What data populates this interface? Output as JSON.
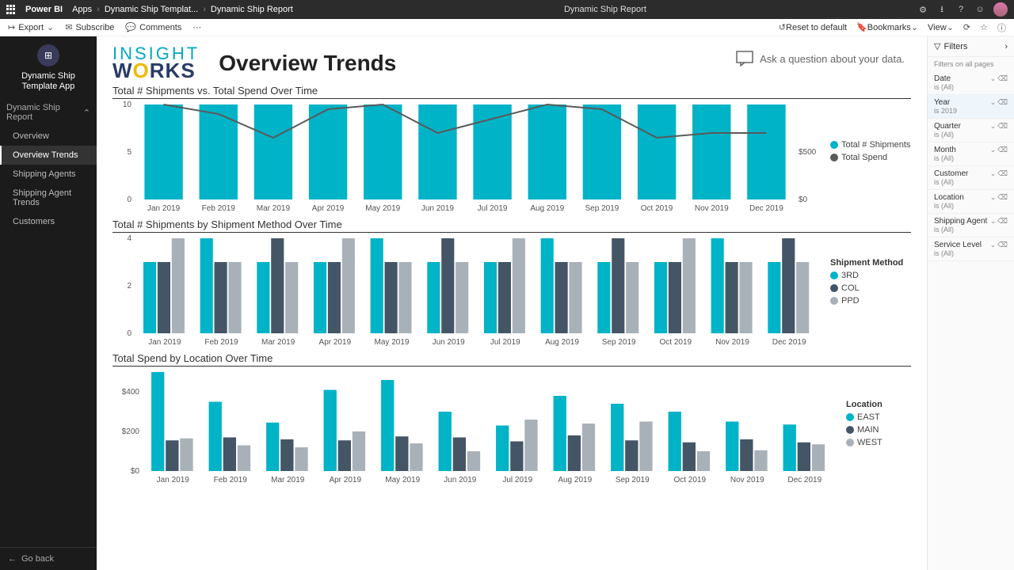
{
  "topbar": {
    "brand": "Power BI",
    "crumbs": [
      "Apps",
      "Dynamic Ship Templat...",
      "Dynamic Ship Report"
    ],
    "center_title": "Dynamic Ship Report"
  },
  "toolbar": {
    "export": "Export",
    "subscribe": "Subscribe",
    "comments": "Comments",
    "reset": "Reset to default",
    "bookmarks": "Bookmarks",
    "view": "View"
  },
  "sidebar": {
    "app_title": "Dynamic Ship Template App",
    "section": "Dynamic Ship Report",
    "items": [
      {
        "label": "Overview",
        "active": false
      },
      {
        "label": "Overview Trends",
        "active": true
      },
      {
        "label": "Shipping Agents",
        "active": false
      },
      {
        "label": "Shipping Agent Trends",
        "active": false
      },
      {
        "label": "Customers",
        "active": false
      }
    ],
    "goback": "Go back"
  },
  "report": {
    "logo1": "INSIGHT",
    "logo2a": "W",
    "logo2b": "O",
    "logo2c": "RKS",
    "title": "Overview Trends",
    "ask": "Ask a question about your data."
  },
  "months": [
    "Jan 2019",
    "Feb 2019",
    "Mar 2019",
    "Apr 2019",
    "May 2019",
    "Jun 2019",
    "Jul 2019",
    "Aug 2019",
    "Sep 2019",
    "Oct 2019",
    "Nov 2019",
    "Dec 2019"
  ],
  "chart1": {
    "title": "Total # Shipments vs. Total Spend Over Time",
    "ylim": [
      0,
      10
    ],
    "yticks": [
      0,
      5,
      10
    ],
    "y2label0": "$0",
    "y2label500": "$500",
    "bars": [
      10,
      10,
      10,
      10,
      10,
      10,
      10,
      10,
      10,
      10,
      10,
      10
    ],
    "bar_color": "#00b3c6",
    "line": [
      10,
      9,
      6.5,
      9.5,
      10,
      7,
      8.5,
      10,
      9.5,
      6.5,
      7,
      7
    ],
    "line_color": "#5a5a5a",
    "legend": [
      {
        "label": "Total # Shipments",
        "color": "#00b3c6"
      },
      {
        "label": "Total Spend",
        "color": "#5a5a5a"
      }
    ]
  },
  "chart2": {
    "title": "Total # Shipments by Shipment Method Over Time",
    "ylim": [
      0,
      4
    ],
    "yticks": [
      0,
      2,
      4
    ],
    "legend_title": "Shipment Method",
    "series": [
      {
        "label": "3RD",
        "color": "#00b3c6",
        "values": [
          3,
          4,
          3,
          3,
          4,
          3,
          3,
          4,
          3,
          3,
          4,
          3
        ]
      },
      {
        "label": "COL",
        "color": "#445566",
        "values": [
          3,
          3,
          4,
          3,
          3,
          4,
          3,
          3,
          4,
          3,
          3,
          4
        ]
      },
      {
        "label": "PPD",
        "color": "#a9b1b8",
        "values": [
          4,
          3,
          3,
          4,
          3,
          3,
          4,
          3,
          3,
          4,
          3,
          3
        ]
      }
    ]
  },
  "chart3": {
    "title": "Total Spend by Location Over Time",
    "ylim": [
      0,
      500
    ],
    "yticks": [
      0,
      200,
      400
    ],
    "ylabels": [
      "$0",
      "$200",
      "$400"
    ],
    "legend_title": "Location",
    "series": [
      {
        "label": "EAST",
        "color": "#00b3c6",
        "values": [
          500,
          350,
          245,
          410,
          460,
          300,
          230,
          380,
          340,
          300,
          250,
          235
        ]
      },
      {
        "label": "MAIN",
        "color": "#445566",
        "values": [
          155,
          170,
          160,
          155,
          175,
          170,
          150,
          180,
          155,
          145,
          160,
          145
        ]
      },
      {
        "label": "WEST",
        "color": "#a9b1b8",
        "values": [
          165,
          130,
          120,
          200,
          140,
          100,
          260,
          240,
          250,
          100,
          105,
          135
        ]
      }
    ]
  },
  "filters": {
    "header": "Filters",
    "sub": "Filters on all pages",
    "items": [
      {
        "name": "Date",
        "value": "is (All)",
        "active": false
      },
      {
        "name": "Year",
        "value": "is 2019",
        "active": true
      },
      {
        "name": "Quarter",
        "value": "is (All)",
        "active": false
      },
      {
        "name": "Month",
        "value": "is (All)",
        "active": false
      },
      {
        "name": "Customer",
        "value": "is (All)",
        "active": false
      },
      {
        "name": "Location",
        "value": "is (All)",
        "active": false
      },
      {
        "name": "Shipping Agent",
        "value": "is (All)",
        "active": false
      },
      {
        "name": "Service Level",
        "value": "is (All)",
        "active": false
      }
    ]
  }
}
